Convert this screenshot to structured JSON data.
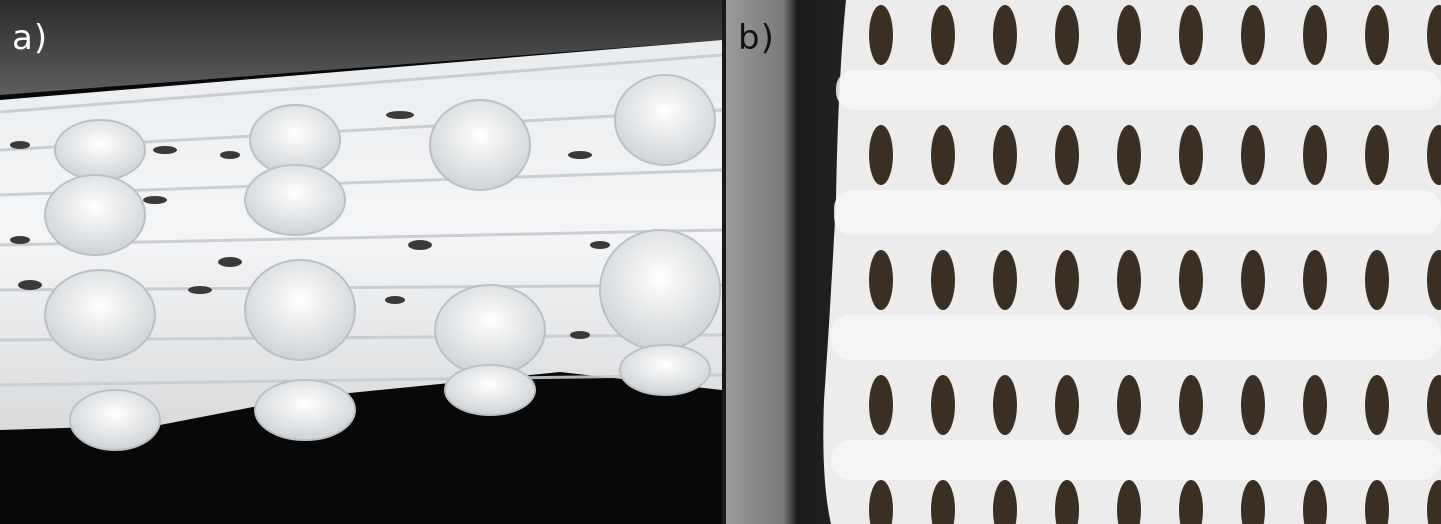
{
  "figure": {
    "panel_a": {
      "label": "a)"
    },
    "panel_b": {
      "label": "b)"
    }
  }
}
